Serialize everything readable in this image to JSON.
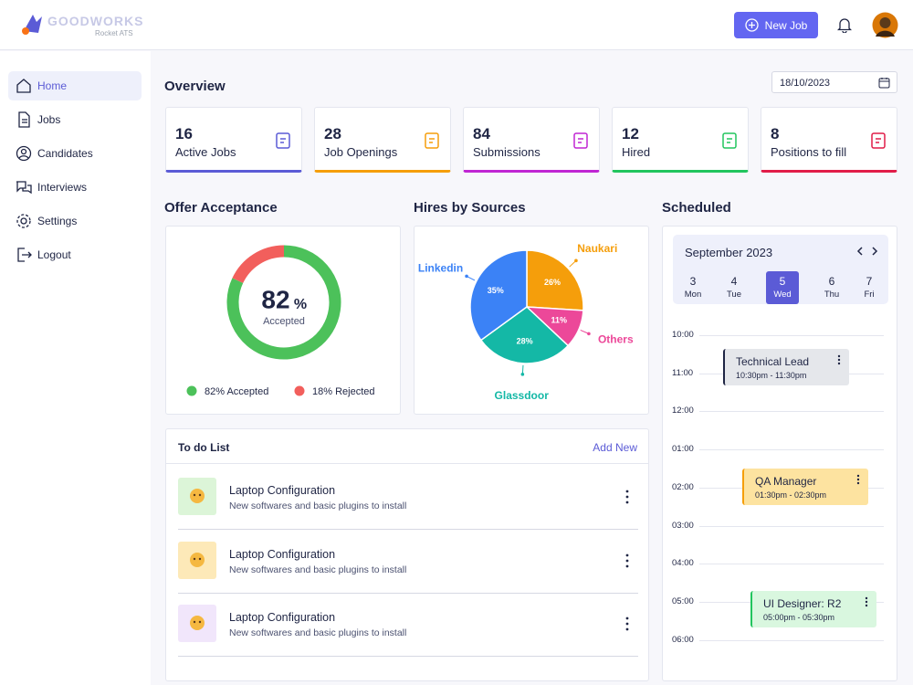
{
  "header": {
    "logo": "GOODWORKS",
    "logo_sub": "Rocket ATS",
    "new_job": "New Job"
  },
  "nav": [
    "Home",
    "Jobs",
    "Candidates",
    "Interviews",
    "Settings",
    "Logout"
  ],
  "overview": {
    "title": "Overview",
    "date": "18/10/2023",
    "cards": [
      {
        "value": 16,
        "label": "Active Jobs",
        "color": "#5b5bd6"
      },
      {
        "value": 28,
        "label": "Job Openings",
        "color": "#f59e0b"
      },
      {
        "value": 84,
        "label": "Submissions",
        "color": "#c026d3"
      },
      {
        "value": 12,
        "label": "Hired",
        "color": "#22c55e"
      },
      {
        "value": 8,
        "label": "Positions to fill",
        "color": "#e11d48"
      }
    ]
  },
  "offer": {
    "title": "Offer Acceptance",
    "value": 82,
    "unit": "%",
    "caption": "Accepted",
    "segments": [
      {
        "value": 82,
        "label": "82% Accepted",
        "color": "#4cc15a"
      },
      {
        "value": 18,
        "label": "18% Rejected",
        "color": "#f25f5c"
      }
    ]
  },
  "sources": {
    "title": "Hires by Sources",
    "slices": [
      {
        "name": "Naukari",
        "value": 26,
        "value_label": "26%",
        "color": "#f59e0b"
      },
      {
        "name": "Others",
        "value": 11,
        "value_label": "11%",
        "color": "#ec4899"
      },
      {
        "name": "Glassdoor",
        "value": 28,
        "value_label": "28%",
        "color": "#14b8a6"
      },
      {
        "name": "Linkedin",
        "value": 35,
        "value_label": "35%",
        "color": "#3b82f6"
      }
    ]
  },
  "todo": {
    "title": "To do List",
    "add": "Add New",
    "items": [
      {
        "title": "Laptop Configuration",
        "desc": "New softwares and basic plugins to install",
        "color": "#dcf5d8"
      },
      {
        "title": "Laptop Configuration",
        "desc": "New softwares and basic plugins to install",
        "color": "#fde9b8"
      },
      {
        "title": "Laptop Configuration",
        "desc": "New softwares and basic plugins to install",
        "color": "#f1e6fb"
      }
    ]
  },
  "schedule": {
    "title": "Scheduled",
    "month": "September 2023",
    "days": [
      {
        "num": 3,
        "name": "Mon"
      },
      {
        "num": 4,
        "name": "Tue"
      },
      {
        "num": 5,
        "name": "Wed",
        "selected": true
      },
      {
        "num": 6,
        "name": "Thu"
      },
      {
        "num": 7,
        "name": "Fri"
      }
    ],
    "times": [
      "10:00",
      "11:00",
      "12:00",
      "01:00",
      "02:00",
      "03:00",
      "04:00",
      "05:00",
      "06:00"
    ],
    "events": [
      {
        "title": "Technical Lead",
        "time": "10:30pm - 11:30pm",
        "color": "#e5e7eb",
        "accent": "#1f2544"
      },
      {
        "title": "QA Manager",
        "time": "01:30pm - 02:30pm",
        "color": "#fde3a0",
        "accent": "#f59e0b"
      },
      {
        "title": "UI Designer: R2",
        "time": "05:00pm - 05:30pm",
        "color": "#d9f7df",
        "accent": "#22c55e"
      }
    ]
  }
}
